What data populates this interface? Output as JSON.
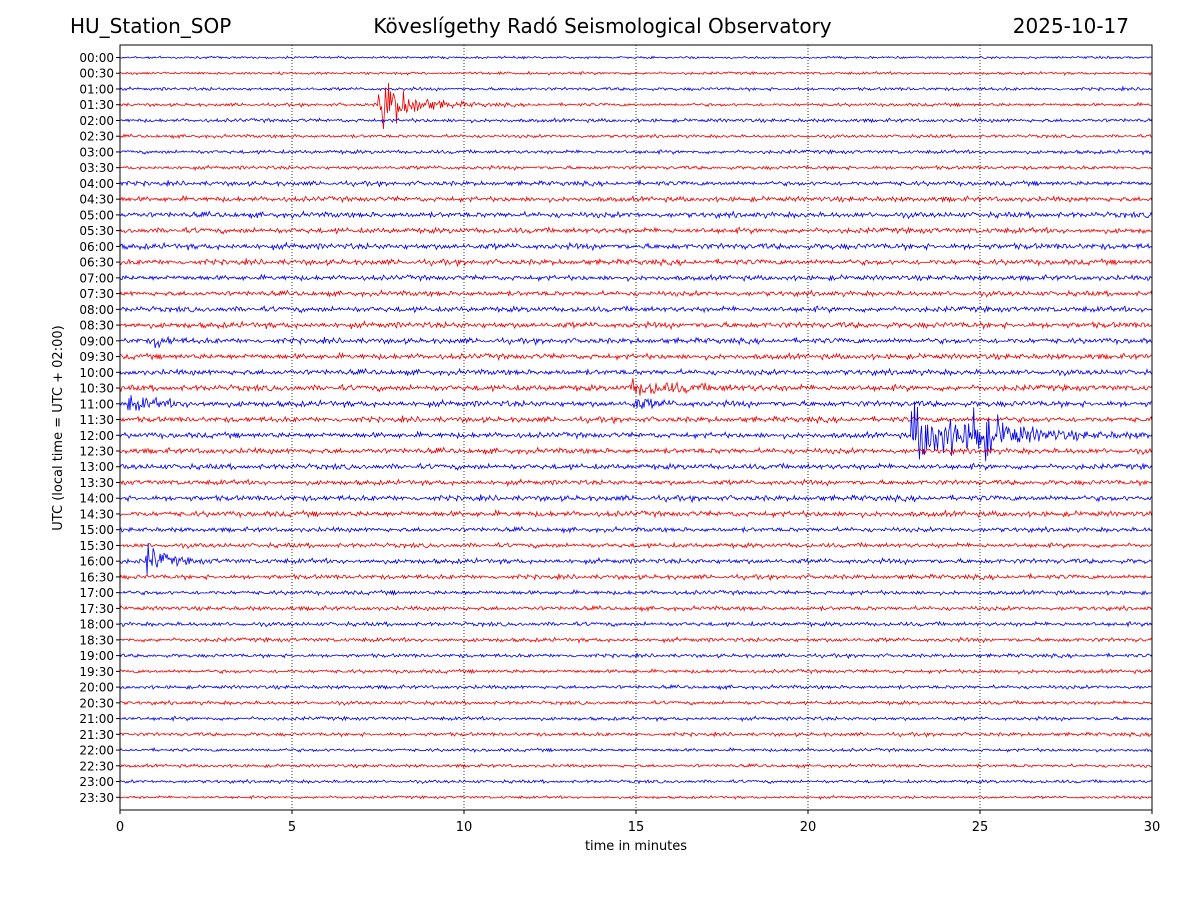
{
  "header": {
    "station": "HU_Station_SOP",
    "observatory": "Köveslígethy Radó Seismological Observatory",
    "date": "2025-10-17"
  },
  "chart_data": {
    "type": "line",
    "title": "Köveslígethy Radó Seismological Observatory",
    "xlabel": "time in minutes",
    "ylabel": "UTC (local time = UTC + 02:00)",
    "xlim": [
      0,
      30
    ],
    "x_ticks": [
      0,
      5,
      10,
      15,
      20,
      25,
      30
    ],
    "vertical_gridlines": [
      5,
      10,
      15,
      20,
      25
    ],
    "grid": "x-dotted",
    "legend": "none",
    "trace_colors": [
      "#0000ee",
      "#ee0000"
    ],
    "rows": [
      "00:00",
      "00:30",
      "01:00",
      "01:30",
      "02:00",
      "02:30",
      "03:00",
      "03:30",
      "04:00",
      "04:30",
      "05:00",
      "05:30",
      "06:00",
      "06:30",
      "07:00",
      "07:30",
      "08:00",
      "08:30",
      "09:00",
      "09:30",
      "10:00",
      "10:30",
      "11:00",
      "11:30",
      "12:00",
      "12:30",
      "13:00",
      "13:30",
      "14:00",
      "14:30",
      "15:00",
      "15:30",
      "16:00",
      "16:30",
      "17:00",
      "17:30",
      "18:00",
      "18:30",
      "19:00",
      "19:30",
      "20:00",
      "20:30",
      "21:00",
      "21:30",
      "22:00",
      "22:30",
      "23:00",
      "23:30"
    ],
    "noise_levels": [
      1,
      1.2,
      1.4,
      1.4,
      1.6,
      1.4,
      1.6,
      1.6,
      2,
      2.2,
      2.4,
      2.4,
      2.6,
      2.4,
      2.2,
      2.2,
      2.4,
      2.6,
      2.4,
      2.4,
      2.4,
      2.6,
      2.6,
      2.4,
      2.4,
      2.4,
      2.4,
      2.2,
      2.4,
      2.4,
      2,
      2,
      2.2,
      2,
      1.8,
      1.8,
      1.8,
      1.8,
      1.6,
      1.6,
      1.6,
      1.6,
      1.6,
      1.6,
      1.4,
      1.4,
      1.4,
      1.2
    ],
    "events": [
      {
        "row": "01:30",
        "start_min": 7.5,
        "peak_amplitude": 28,
        "duration_min": 2.5
      },
      {
        "row": "09:00",
        "start_min": 1.0,
        "peak_amplitude": 7,
        "duration_min": 1.0
      },
      {
        "row": "10:30",
        "start_min": 14.8,
        "peak_amplitude": 6,
        "duration_min": 4.5
      },
      {
        "row": "11:00",
        "start_min": 0.2,
        "peak_amplitude": 6,
        "duration_min": 2.5
      },
      {
        "row": "11:00",
        "start_min": 14.9,
        "peak_amplitude": 5,
        "duration_min": 1.8
      },
      {
        "row": "12:00",
        "start_min": 23.0,
        "peak_amplitude": 26,
        "duration_min": 5.5
      },
      {
        "row": "12:00",
        "start_min": 24.8,
        "peak_amplitude": 20,
        "duration_min": 2.0
      },
      {
        "row": "16:00",
        "start_min": 0.75,
        "peak_amplitude": 14,
        "duration_min": 1.5
      }
    ]
  }
}
